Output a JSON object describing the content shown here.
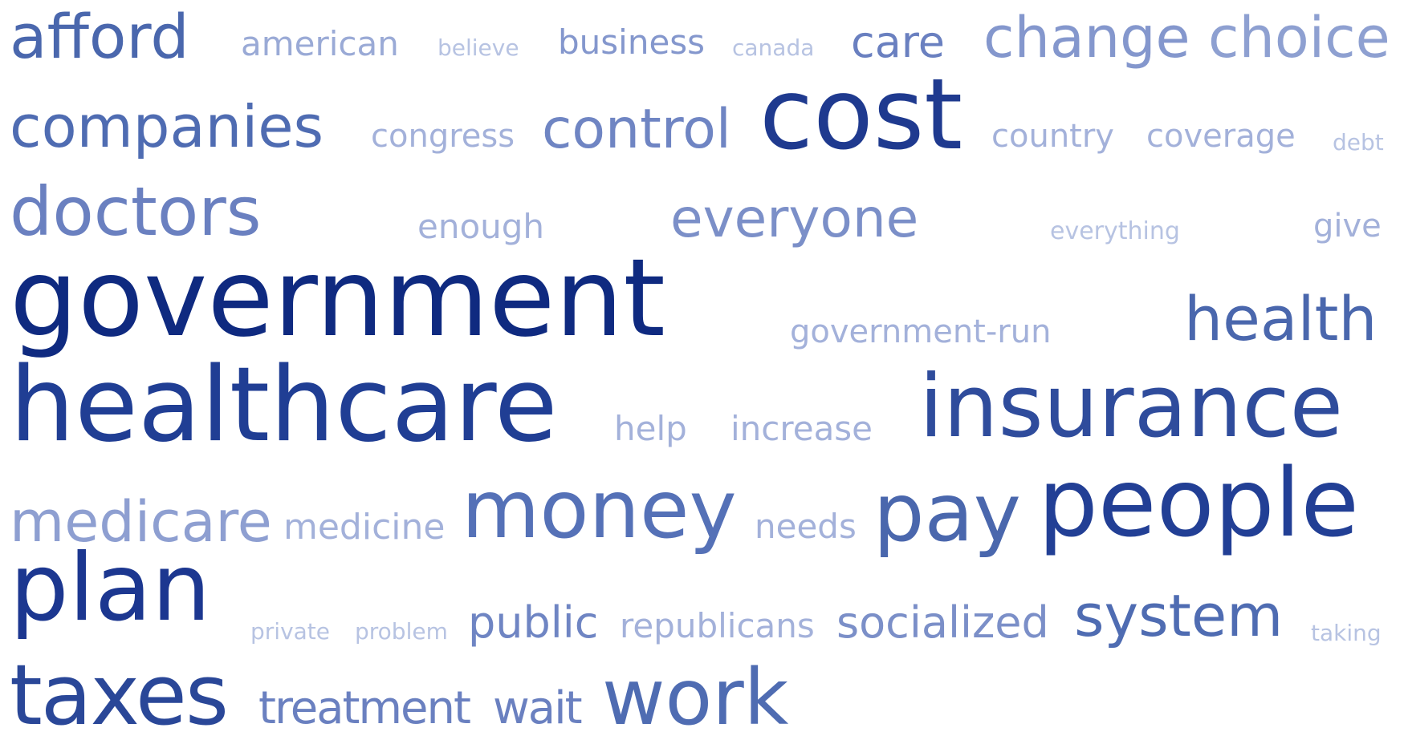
{
  "cloud": {
    "words": [
      {
        "text": "afford",
        "color": "#4a67ad"
      },
      {
        "text": "american",
        "color": "#9aaad6"
      },
      {
        "text": "believe",
        "color": "#b7c3e2"
      },
      {
        "text": "business",
        "color": "#8497cd"
      },
      {
        "text": "canada",
        "color": "#b7c3e2"
      },
      {
        "text": "care",
        "color": "#6a80c0"
      },
      {
        "text": "change",
        "color": "#8497cd"
      },
      {
        "text": "choice",
        "color": "#8ea0d1"
      },
      {
        "text": "companies",
        "color": "#4f6cb2"
      },
      {
        "text": "congress",
        "color": "#a3b1da"
      },
      {
        "text": "control",
        "color": "#6f85c3"
      },
      {
        "text": "cost",
        "color": "#1f3a8f"
      },
      {
        "text": "country",
        "color": "#a3b1da"
      },
      {
        "text": "coverage",
        "color": "#a3b1da"
      },
      {
        "text": "debt",
        "color": "#b7c3e2"
      },
      {
        "text": "doctors",
        "color": "#6a80c0"
      },
      {
        "text": "enough",
        "color": "#a3b1da"
      },
      {
        "text": "everyone",
        "color": "#7b8fc8"
      },
      {
        "text": "everything",
        "color": "#b7c3e2"
      },
      {
        "text": "give",
        "color": "#a3b1da"
      },
      {
        "text": "government",
        "color": "#0f2a80"
      },
      {
        "text": "government-run",
        "color": "#a3b1da"
      },
      {
        "text": "health",
        "color": "#4a67ad"
      },
      {
        "text": "healthcare",
        "color": "#203e94"
      },
      {
        "text": "help",
        "color": "#a3b1da"
      },
      {
        "text": "increase",
        "color": "#a3b1da"
      },
      {
        "text": "insurance",
        "color": "#2f4c9c"
      },
      {
        "text": "medicare",
        "color": "#8e9fd1"
      },
      {
        "text": "medicine",
        "color": "#a3b1da"
      },
      {
        "text": "money",
        "color": "#5571b7"
      },
      {
        "text": "needs",
        "color": "#a3b1da"
      },
      {
        "text": "pay",
        "color": "#4a67ad"
      },
      {
        "text": "people",
        "color": "#223f95"
      },
      {
        "text": "plan",
        "color": "#1c3790"
      },
      {
        "text": "private",
        "color": "#b7c3e2"
      },
      {
        "text": "problem",
        "color": "#b7c3e2"
      },
      {
        "text": "public",
        "color": "#6f85c3"
      },
      {
        "text": "republicans",
        "color": "#a3b1da"
      },
      {
        "text": "socialized",
        "color": "#7b8fc8"
      },
      {
        "text": "system",
        "color": "#4f6cb2"
      },
      {
        "text": "taking",
        "color": "#b7c3e2"
      },
      {
        "text": "taxes",
        "color": "#2a4798"
      },
      {
        "text": "treatment",
        "color": "#6a80c0"
      },
      {
        "text": "wait",
        "color": "#6a80c0"
      },
      {
        "text": "work",
        "color": "#4f6cb2"
      }
    ]
  }
}
